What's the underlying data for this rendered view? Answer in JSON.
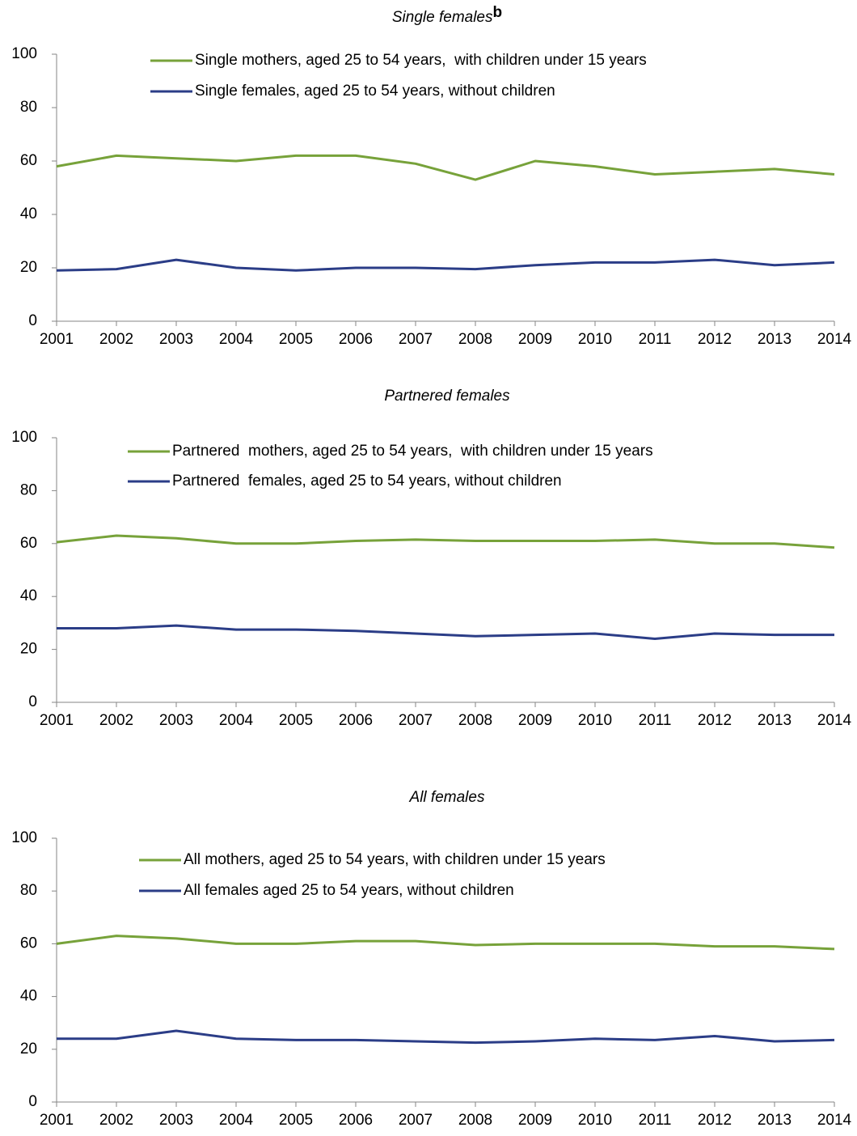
{
  "chart_data": [
    {
      "type": "line",
      "title": "Single females",
      "title_superscript": "b",
      "categories": [
        "2001",
        "2002",
        "2003",
        "2004",
        "2005",
        "2006",
        "2007",
        "2008",
        "2009",
        "2010",
        "2011",
        "2012",
        "2013",
        "2014"
      ],
      "ylim": [
        0,
        100
      ],
      "yticks": [
        0,
        20,
        40,
        60,
        80,
        100
      ],
      "series": [
        {
          "name": "Single mothers, aged 25 to 54 years,  with children under 15 years",
          "color": "#77a23a",
          "values": [
            58,
            62,
            61,
            60,
            62,
            62,
            59,
            53,
            60,
            58,
            55,
            56,
            57,
            55
          ]
        },
        {
          "name": "Single females, aged 25 to 54 years, without children",
          "color": "#2b3d87",
          "values": [
            19,
            19.5,
            23,
            20,
            19,
            20,
            20,
            19.5,
            21,
            22,
            22,
            23,
            21,
            22
          ]
        }
      ]
    },
    {
      "type": "line",
      "title": "Partnered females",
      "categories": [
        "2001",
        "2002",
        "2003",
        "2004",
        "2005",
        "2006",
        "2007",
        "2008",
        "2009",
        "2010",
        "2011",
        "2012",
        "2013",
        "2014"
      ],
      "ylim": [
        0,
        100
      ],
      "yticks": [
        0,
        20,
        40,
        60,
        80,
        100
      ],
      "series": [
        {
          "name": "Partnered  mothers, aged 25 to 54 years,  with children under 15 years",
          "color": "#77a23a",
          "values": [
            60.5,
            63,
            62,
            60,
            60,
            61,
            61.5,
            61,
            61,
            61,
            61.5,
            60,
            60,
            58.5
          ]
        },
        {
          "name": "Partnered  females, aged 25 to 54 years, without children",
          "color": "#2b3d87",
          "values": [
            28,
            28,
            29,
            27.5,
            27.5,
            27,
            26,
            25,
            25.5,
            26,
            24,
            26,
            25.5,
            25.5
          ]
        }
      ]
    },
    {
      "type": "line",
      "title": "All females",
      "categories": [
        "2001",
        "2002",
        "2003",
        "2004",
        "2005",
        "2006",
        "2007",
        "2008",
        "2009",
        "2010",
        "2011",
        "2012",
        "2013",
        "2014"
      ],
      "ylim": [
        0,
        100
      ],
      "yticks": [
        0,
        20,
        40,
        60,
        80,
        100
      ],
      "series": [
        {
          "name": "All mothers, aged 25 to 54 years, with children under 15 years",
          "color": "#77a23a",
          "values": [
            60,
            63,
            62,
            60,
            60,
            61,
            61,
            59.5,
            60,
            60,
            60,
            59,
            59,
            58
          ]
        },
        {
          "name": "All females aged 25 to 54 years, without children",
          "color": "#2b3d87",
          "values": [
            24,
            24,
            27,
            24,
            23.5,
            23.5,
            23,
            22.5,
            23,
            24,
            23.5,
            25,
            23,
            23.5
          ]
        }
      ]
    }
  ]
}
